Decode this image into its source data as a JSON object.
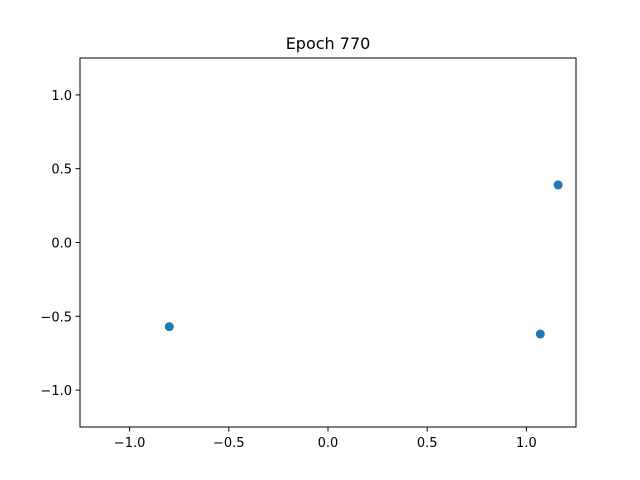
{
  "chart_data": {
    "type": "scatter",
    "title": "Epoch 770",
    "xlabel": "",
    "ylabel": "",
    "xlim": [
      -1.25,
      1.25
    ],
    "ylim": [
      -1.25,
      1.25
    ],
    "xticks": [
      -1.0,
      -0.5,
      0.0,
      0.5,
      1.0
    ],
    "yticks": [
      -1.0,
      -0.5,
      0.0,
      0.5,
      1.0
    ],
    "xtick_labels": [
      "−1.0",
      "−0.5",
      "0.0",
      "0.5",
      "1.0"
    ],
    "ytick_labels": [
      "−1.0",
      "−0.5",
      "0.0",
      "0.5",
      "1.0"
    ],
    "grid": false,
    "series": [
      {
        "color": "#1f77b4",
        "points": [
          {
            "x": -0.8,
            "y": -0.57
          },
          {
            "x": 1.07,
            "y": -0.62
          },
          {
            "x": 1.16,
            "y": 0.39
          }
        ]
      }
    ]
  }
}
